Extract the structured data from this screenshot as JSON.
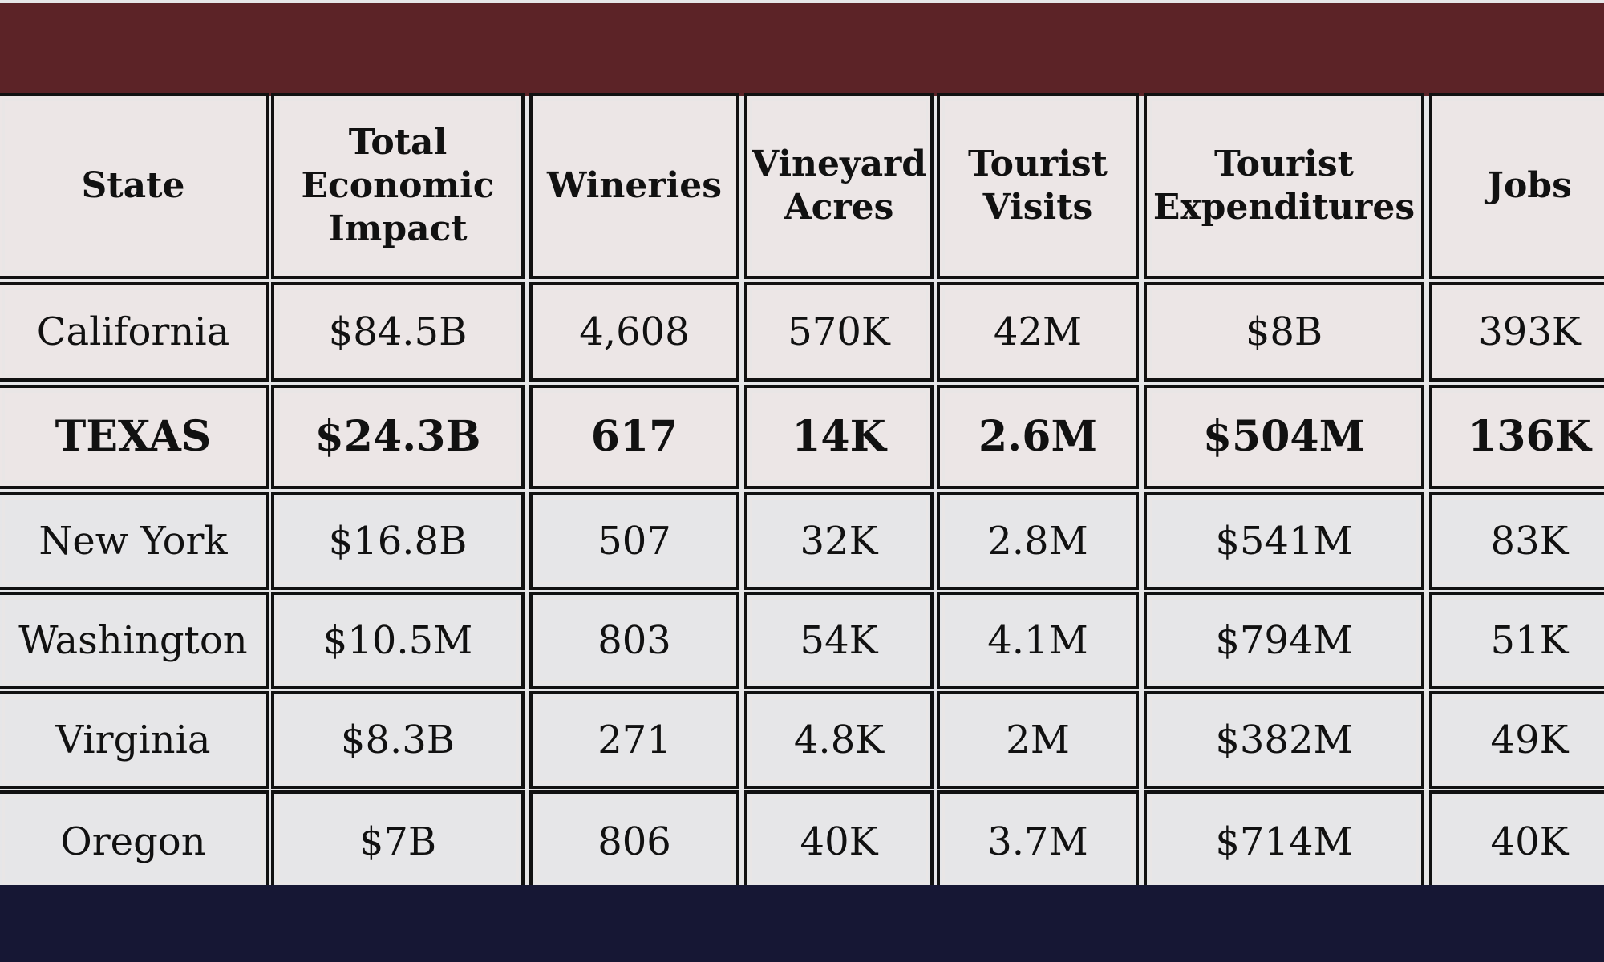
{
  "colors": {
    "top_band": "#5c2327",
    "bottom_band": "#161734",
    "header_bg": "#ece6e6",
    "california_bg": "#ece6e6",
    "texas_bg": "#ece6e6",
    "rows_bg": "#e6e6e8",
    "border": "#111111"
  },
  "chart_data": {
    "type": "table",
    "columns": [
      [
        "State"
      ],
      [
        "Total",
        "Economic",
        "Impact"
      ],
      [
        "Wineries"
      ],
      [
        "Vineyard",
        "Acres"
      ],
      [
        "Tourist",
        "Visits"
      ],
      [
        "Tourist",
        "Expenditures"
      ],
      [
        "Jobs"
      ]
    ],
    "rows": [
      [
        "California",
        "$84.5B",
        "4,608",
        "570K",
        "42M",
        "$8B",
        "393K"
      ],
      [
        "TEXAS",
        "$24.3B",
        "617",
        "14K",
        "2.6M",
        "$504M",
        "136K"
      ],
      [
        "New York",
        "$16.8B",
        "507",
        "32K",
        "2.8M",
        "$541M",
        "83K"
      ],
      [
        "Washington",
        "$10.5M",
        "803",
        "54K",
        "4.1M",
        "$794M",
        "51K"
      ],
      [
        "Virginia",
        "$8.3B",
        "271",
        "4.8K",
        "2M",
        "$382M",
        "49K"
      ],
      [
        "Oregon",
        "$7B",
        "806",
        "40K",
        "3.7M",
        "$714M",
        "40K"
      ]
    ],
    "highlighted_row": "TEXAS"
  }
}
